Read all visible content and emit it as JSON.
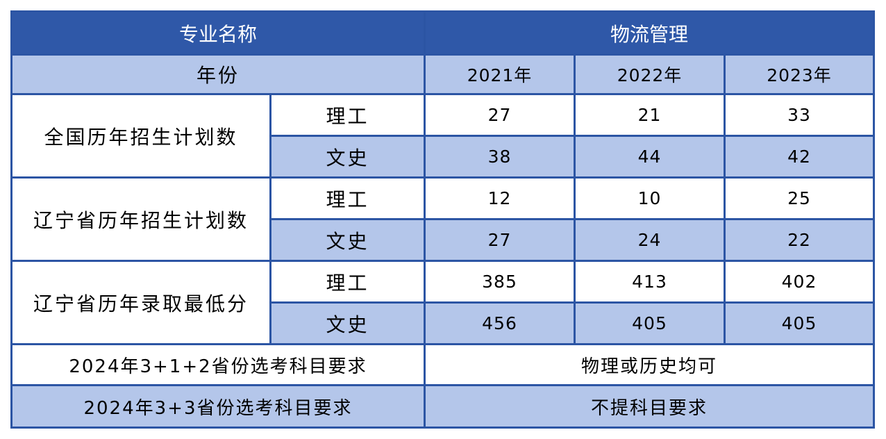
{
  "header": {
    "major_label": "专业名称",
    "major_value": "物流管理"
  },
  "year_row": {
    "label": "年份",
    "years": [
      "2021年",
      "2022年",
      "2023年"
    ]
  },
  "groups": [
    {
      "title": "全国历年招生计划数",
      "rows": [
        {
          "type": "理工",
          "values": [
            "27",
            "21",
            "33"
          ]
        },
        {
          "type": "文史",
          "values": [
            "38",
            "44",
            "42"
          ]
        }
      ]
    },
    {
      "title": "辽宁省历年招生计划数",
      "rows": [
        {
          "type": "理工",
          "values": [
            "12",
            "10",
            "25"
          ]
        },
        {
          "type": "文史",
          "values": [
            "27",
            "24",
            "22"
          ]
        }
      ]
    },
    {
      "title": "辽宁省历年录取最低分",
      "rows": [
        {
          "type": "理工",
          "values": [
            "385",
            "413",
            "402"
          ]
        },
        {
          "type": "文史",
          "values": [
            "456",
            "405",
            "405"
          ]
        }
      ]
    }
  ],
  "requirements": [
    {
      "label": "2024年3+1+2省份选考科目要求",
      "value": "物理或历史均可"
    },
    {
      "label": "2024年3+3省份选考科目要求",
      "value": "不提科目要求"
    }
  ],
  "colors": {
    "header_blue": "#2f58a8",
    "row_blue": "#b4c6ea",
    "border": "#2c55a4"
  }
}
